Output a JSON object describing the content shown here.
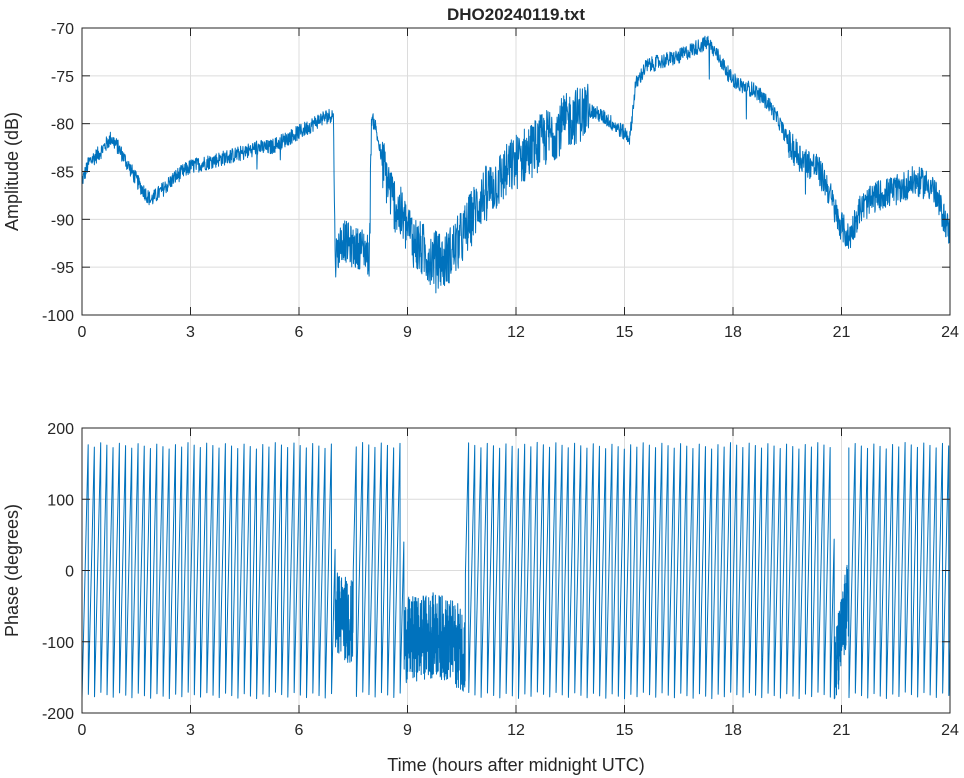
{
  "chart_data": [
    {
      "type": "line",
      "title": "DHO20240119.txt",
      "xlabel": "",
      "ylabel": "Amplitude (dB)",
      "xlim": [
        0,
        24
      ],
      "ylim": [
        -100,
        -70
      ],
      "xticks": [
        "0",
        "3",
        "6",
        "9",
        "12",
        "15",
        "18",
        "21",
        "24"
      ],
      "yticks": [
        "-70",
        "-75",
        "-80",
        "-85",
        "-90",
        "-95",
        "-100"
      ],
      "grid": true,
      "color": "#0072BD",
      "series": [
        {
          "x": [
            0,
            0.2,
            0.5,
            0.8,
            1.0,
            1.3,
            1.6,
            1.9,
            2.2,
            2.6,
            3.0,
            3.5,
            4.0,
            4.5,
            4.8,
            5.2,
            5.7,
            6.2,
            6.6,
            6.95,
            7.0,
            7.2,
            7.5,
            7.8,
            7.95,
            8.0,
            8.1,
            8.3,
            8.6,
            9.0,
            9.3,
            9.7,
            10.0,
            10.5,
            11.0,
            11.5,
            12.0,
            12.5,
            13.0,
            13.5,
            14.0,
            14.5,
            15.0,
            15.15,
            15.3,
            15.6,
            16.0,
            16.5,
            17.0,
            17.3,
            17.6,
            17.9,
            18.2,
            18.6,
            19.0,
            19.3,
            19.6,
            20.0,
            20.3,
            20.6,
            20.9,
            21.2,
            21.5,
            22.0,
            22.5,
            23.0,
            23.5,
            24.0
          ],
          "y": [
            -86,
            -84,
            -83,
            -81.5,
            -82.5,
            -84.5,
            -86.5,
            -88,
            -87,
            -85.5,
            -84.5,
            -84,
            -83.5,
            -83,
            -82.5,
            -82.5,
            -81.5,
            -80.5,
            -79.5,
            -79,
            -94,
            -92,
            -93,
            -93,
            -94,
            -79.5,
            -80,
            -84,
            -88,
            -91,
            -93,
            -94,
            -94.5,
            -92,
            -88,
            -86,
            -84,
            -82.5,
            -81,
            -79.5,
            -78.5,
            -79.5,
            -81,
            -81.5,
            -76,
            -74,
            -73.5,
            -73,
            -72,
            -71.5,
            -73,
            -75,
            -76,
            -76.5,
            -78,
            -80,
            -82.5,
            -84,
            -84.5,
            -86.5,
            -90,
            -92,
            -89,
            -87.5,
            -87,
            -86,
            -86.5,
            -91.5
          ]
        }
      ]
    },
    {
      "type": "line",
      "title": "",
      "xlabel": "Time (hours after midnight UTC)",
      "ylabel": "Phase (degrees)",
      "xlim": [
        0,
        24
      ],
      "ylim": [
        -200,
        200
      ],
      "xticks": [
        "0",
        "3",
        "6",
        "9",
        "12",
        "15",
        "18",
        "21",
        "24"
      ],
      "yticks": [
        "200",
        "100",
        "0",
        "-100",
        "-200"
      ],
      "grid": true,
      "color": "#0072BD",
      "series": [
        {
          "x_start": 0,
          "x_end": 24,
          "wrap_limits": [
            -180,
            180
          ],
          "cycles_per_hour": 5.8,
          "y": [
            170,
            150,
            120,
            80,
            40,
            0,
            -40,
            -80,
            -100,
            -90,
            -120,
            -150,
            60,
            100,
            130,
            120,
            100,
            90,
            170,
            -170,
            140,
            100,
            60
          ]
        }
      ]
    }
  ]
}
